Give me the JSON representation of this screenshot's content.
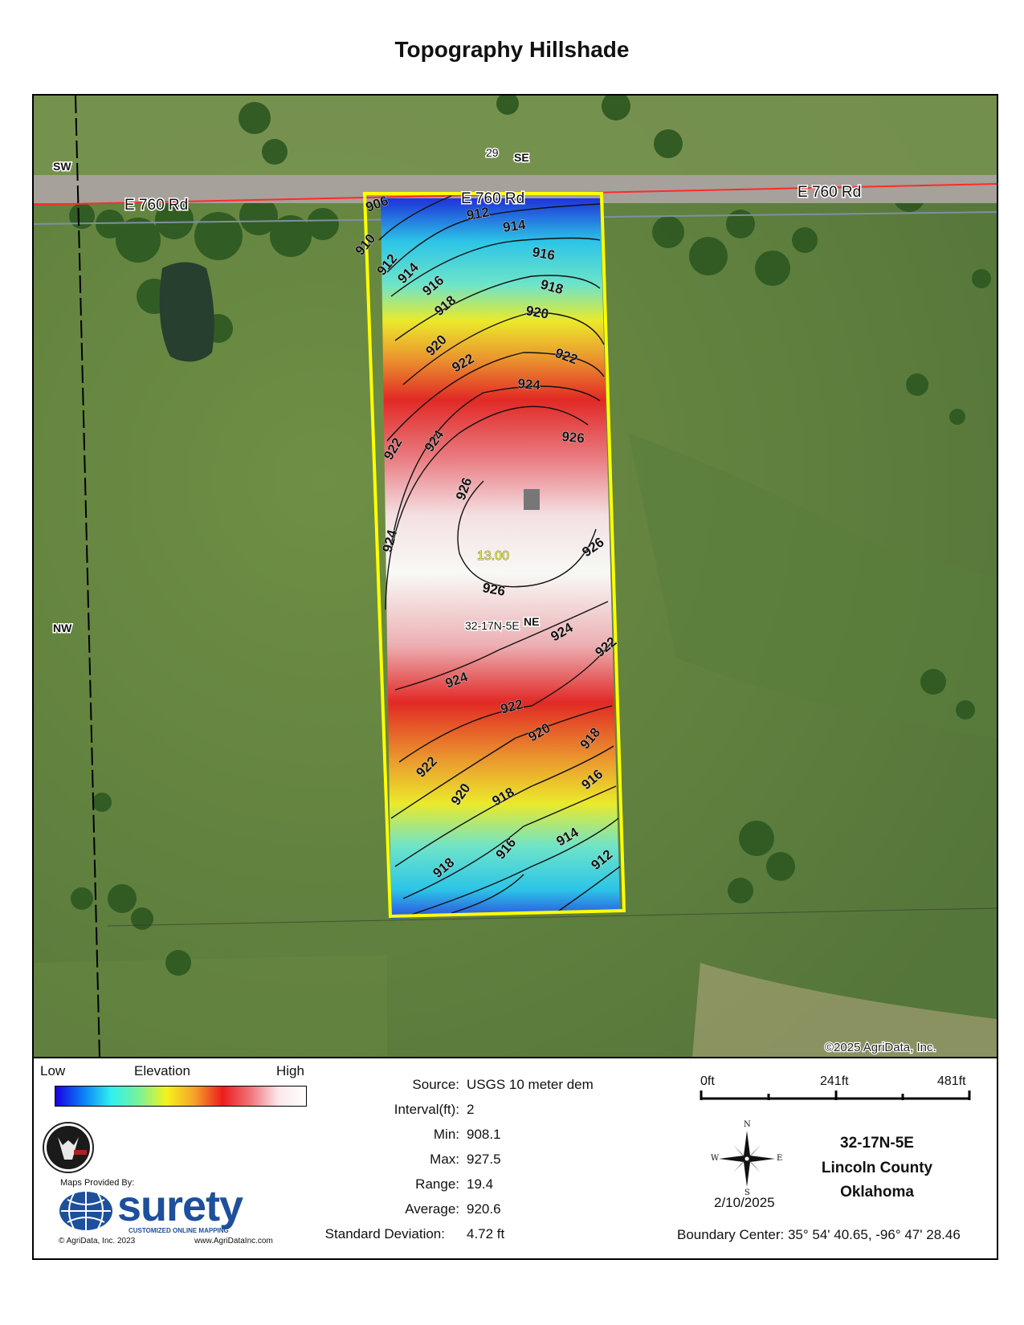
{
  "page": {
    "title": "Topography Hillshade"
  },
  "map": {
    "road_labels": [
      "E 760 Rd",
      "E 760 Rd",
      "E 760 Rd"
    ],
    "section_labels": {
      "sw": "SW",
      "se": "SE",
      "nw": "NW",
      "ne": "NE",
      "number": "29",
      "center": "32-17N-5E"
    },
    "spot_value": "13.00",
    "copyright": "©2025 AgriData, Inc.",
    "contours": [
      "906",
      "910",
      "912",
      "912",
      "914",
      "914",
      "916",
      "916",
      "918",
      "918",
      "920",
      "920",
      "922",
      "922",
      "922",
      "924",
      "924",
      "924",
      "926",
      "926",
      "926",
      "926",
      "924",
      "924",
      "922",
      "922",
      "922",
      "920",
      "920",
      "918",
      "918",
      "918",
      "916",
      "916",
      "914",
      "912"
    ],
    "colors": {
      "boundary": "#ffff00",
      "road_line": "#ff2a2a",
      "section_line": "#000000"
    }
  },
  "legend": {
    "low": "Low",
    "elevation": "Elevation",
    "high": "High",
    "stats": [
      {
        "key": "Source:",
        "value": "USGS 10 meter dem"
      },
      {
        "key": "Interval(ft):",
        "value": "2"
      },
      {
        "key": "Min:",
        "value": "908.1"
      },
      {
        "key": "Max:",
        "value": "927.5"
      },
      {
        "key": "Range:",
        "value": "19.4"
      },
      {
        "key": "Average:",
        "value": "920.6"
      },
      {
        "key": "Standard Deviation:",
        "value": "4.72 ft"
      }
    ],
    "scale": {
      "zero": "0ft",
      "mid": "241ft",
      "max": "481ft"
    },
    "compass": {
      "n": "N",
      "s": "S",
      "e": "E",
      "w": "W"
    },
    "date": "2/10/2025",
    "location": {
      "section": "32-17N-5E",
      "county": "Lincoln County",
      "state": "Oklahoma"
    },
    "boundary_center": "Boundary Center: 35° 54' 40.65,  -96° 47' 28.46",
    "provider": {
      "maps_provided_by": "Maps Provided By:",
      "brand": "surety",
      "tagline": "CUSTOMIZED ONLINE MAPPING",
      "copyright": "© AgriData, Inc. 2023",
      "website": "www.AgriDataInc.com"
    }
  }
}
